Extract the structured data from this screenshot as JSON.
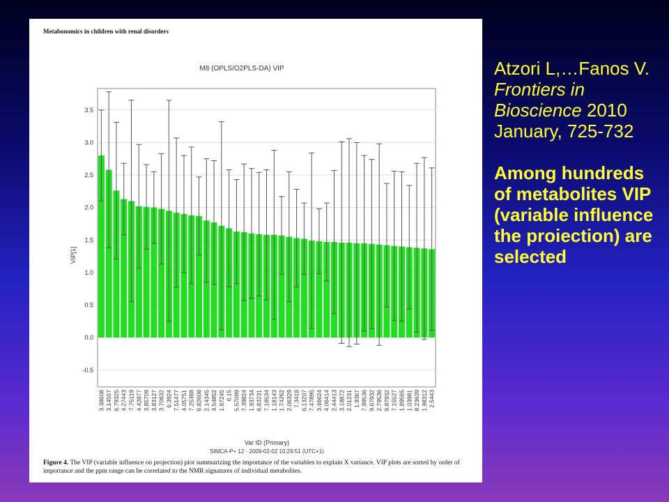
{
  "chart_data": {
    "type": "bar",
    "header": "Metabonomics in children with renal disorders",
    "title": "M8 (OPLS/O2PLS-DA)   VIP",
    "ylabel": "VIP[1]",
    "xlabel": "Var ID (Primary)",
    "footer": "SIMCA-P+ 12 - 2009-02-02 10:29:51 (UTC+1)",
    "caption_label": "Figure 4.",
    "caption_text": "The VIP (variable influence on projection) plot summarizing the importance of the variables to explain X variance. VIP plots are sorted by order of importance and the ppm range can be correlated to the NMR signatures of individual metabolites.",
    "categories": [
      "3.38608",
      "3.14557",
      "6.79325",
      "4.27443",
      "7.75119",
      "4.42877",
      "3.85709",
      "3.83127",
      "3.70832",
      "6.3924",
      "7.51477",
      "4.05751",
      "7.25388",
      "6.82608",
      "2.14345",
      "4.54852",
      "1.67245",
      "6.15",
      "5.57099",
      "7.39824",
      "1.93734",
      "6.83231",
      "7.18534",
      "1.18143",
      "1.74262",
      "2.06329",
      "7.3418",
      "6.13207",
      "7.47895",
      "3.46624",
      "4.06414",
      "2.44413",
      "3.18872",
      "2.01231",
      "1.9367",
      "7.99536",
      "9.67932",
      "2.79536",
      "9.87932",
      "7.15527",
      "1.89565",
      "1.03981",
      "8.23639",
      "1.98312",
      "2.5443"
    ],
    "values": [
      2.8,
      2.58,
      2.26,
      2.13,
      2.1,
      2.02,
      2.01,
      2.0,
      1.98,
      1.95,
      1.92,
      1.9,
      1.88,
      1.87,
      1.8,
      1.77,
      1.72,
      1.68,
      1.63,
      1.62,
      1.6,
      1.59,
      1.58,
      1.58,
      1.57,
      1.55,
      1.53,
      1.52,
      1.49,
      1.48,
      1.47,
      1.47,
      1.46,
      1.46,
      1.45,
      1.45,
      1.44,
      1.43,
      1.42,
      1.41,
      1.4,
      1.39,
      1.38,
      1.37,
      1.36
    ],
    "errors": [
      0.7,
      1.2,
      1.05,
      0.55,
      1.55,
      0.95,
      0.65,
      0.55,
      0.85,
      1.7,
      1.15,
      0.9,
      1.05,
      0.6,
      0.95,
      0.95,
      1.6,
      0.9,
      0.8,
      1.05,
      1.0,
      0.95,
      1.0,
      1.3,
      0.6,
      1.0,
      0.75,
      0.55,
      1.35,
      0.5,
      0.6,
      1.1,
      1.55,
      1.6,
      1.55,
      1.35,
      1.3,
      1.55,
      0.95,
      1.15,
      1.15,
      0.95,
      1.3,
      1.4,
      1.25
    ],
    "color": "#22dd22",
    "ylim": [
      -0.76,
      3.83
    ],
    "yticks": [
      {
        "value": 3.5,
        "label": "3.5"
      },
      {
        "value": 3.0,
        "label": "3.0"
      },
      {
        "value": 2.5,
        "label": "2.5"
      },
      {
        "value": 2.0,
        "label": "2.0"
      },
      {
        "value": 1.5,
        "label": "1.5"
      },
      {
        "value": 1.0,
        "label": "1.0"
      },
      {
        "value": 0.5,
        "label": "0.5"
      },
      {
        "value": 0.0,
        "label": "0.0"
      },
      {
        "value": -0.5,
        "label": "-0.5"
      }
    ],
    "grid": true
  },
  "slide": {
    "citation": "Atzori L,…Fanos V.",
    "journal": "Frontiers in Bioscience",
    "reference": " 2010 January, 725-732",
    "statement": "Among hundreds of metabolites VIP (variable influence the proiection) are selected"
  }
}
